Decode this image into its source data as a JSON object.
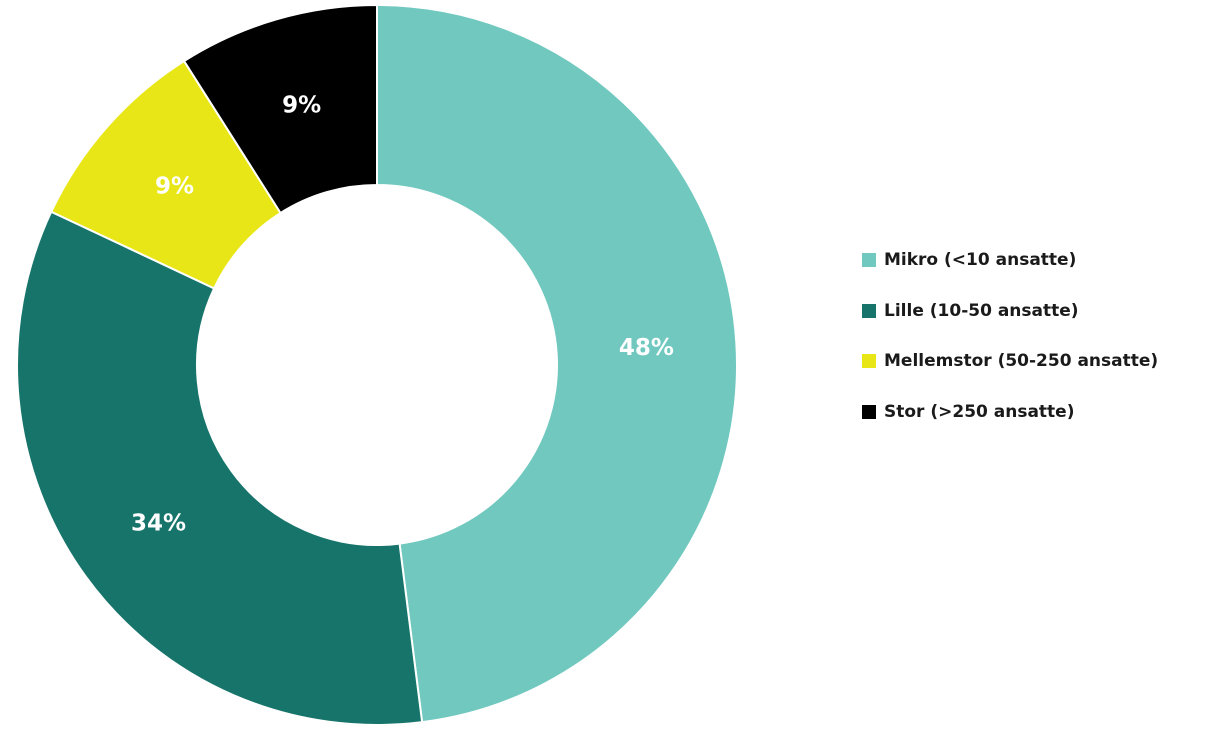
{
  "chart_data": {
    "type": "pie",
    "variant": "donut",
    "title": "",
    "categories": [
      "Mikro (<10 ansatte)",
      "Lille (10-50 ansatte)",
      "Mellemstor (50-250 ansatte)",
      "Stor (>250 ansatte)"
    ],
    "values": [
      48,
      34,
      9,
      9
    ],
    "data_labels": [
      "48%",
      "34%",
      "9%",
      "9%"
    ],
    "colors": [
      "#70C8BF",
      "#16746A",
      "#E8E616",
      "#000000"
    ],
    "label_colors": [
      "#ffffff",
      "#ffffff",
      "#ffffff",
      "#ffffff"
    ],
    "legend_position": "right"
  }
}
